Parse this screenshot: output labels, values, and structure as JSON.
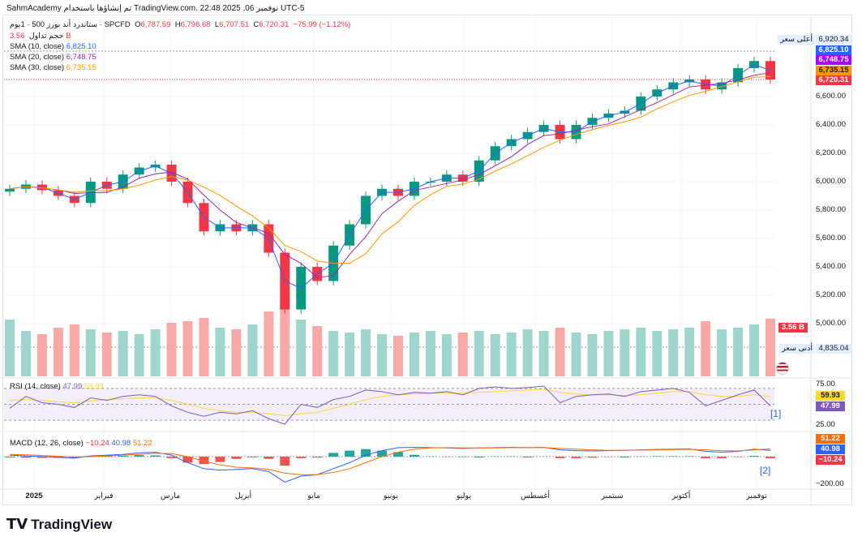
{
  "header": {
    "caption": "SahmAcademy تم إنشاؤها باستخدام TradingView.com. 22:48 2025 ,06 نوفمبر UTC-5"
  },
  "legend": {
    "symbol": "ستاندرد أند بورز 500 · 1يوم · SPCFD",
    "o_label": "O",
    "open": "6,787.59",
    "h_label": "H",
    "high": "6,796.68",
    "l_label": "L",
    "low": "6,707.51",
    "c_label": "C",
    "close": "6,720.31",
    "change": "−75.99 (−1.12%)",
    "volume_label": "حجم تداول",
    "volume": "3.56 B",
    "sma10_label": "SMA (10, close)",
    "sma10": "6,825.10",
    "sma20_label": "SMA (20, close)",
    "sma20": "6,748.75",
    "sma30_label": "SMA (30, close)",
    "sma30": "6,735.15"
  },
  "price_axis": {
    "ticks": [
      "6,600.00",
      "6,400.00",
      "6,200.00",
      "6,000.00",
      "5,800.00",
      "5,600.00",
      "5,400.00",
      "5,200.00",
      "5,000.00"
    ],
    "high_label": "أعلى سعر",
    "high_value": "6,920.34",
    "low_label": "أدنى سعر",
    "low_value": "4,835.04",
    "volume_badge": "3.56 B"
  },
  "rsi": {
    "label": "RSI (14, close)",
    "value": "47.99",
    "ma": "59.93",
    "ticks": [
      "75.00",
      "25.00"
    ],
    "note": "[1]"
  },
  "macd": {
    "label": "MACD (12, 26, close)",
    "hist": "−10.24",
    "macd": "40.98",
    "signal": "51.22",
    "tick": "−200.00",
    "note": "[2]"
  },
  "x_axis": [
    "2025",
    "فبراير",
    "مارس",
    "أبريل",
    "مايو",
    "يونيو",
    "يوليو",
    "أغسطس",
    "سبتمبر",
    "أكتوبر",
    "نوفمبر"
  ],
  "brand": "TradingView",
  "colors": {
    "up": "#089981",
    "down": "#f23645",
    "sma10": "#2962ff",
    "sma20": "#9c27b0",
    "sma30": "#ff9800",
    "rsi": "#7e57c2",
    "rsima": "#fdd835"
  },
  "chart_data": {
    "type": "candlestick",
    "title": "S&P 500 · 1D · SPCFD",
    "ylim": [
      4835,
      6920
    ],
    "closes": [
      5950,
      5980,
      5940,
      5900,
      5850,
      6000,
      5950,
      6050,
      6100,
      6120,
      6000,
      5850,
      5650,
      5700,
      5650,
      5700,
      5500,
      5100,
      5400,
      5300,
      5550,
      5700,
      5900,
      5950,
      5900,
      6000,
      6000,
      6050,
      6000,
      6150,
      6250,
      6300,
      6350,
      6400,
      6300,
      6400,
      6450,
      6480,
      6500,
      6600,
      6650,
      6700,
      6720,
      6650,
      6700,
      6800,
      6850,
      6720
    ],
    "volume_billions": [
      3.5,
      2.8,
      2.6,
      3.0,
      3.2,
      2.9,
      2.7,
      2.8,
      2.6,
      2.9,
      3.3,
      3.4,
      3.6,
      3.0,
      2.9,
      3.2,
      4.0,
      4.5,
      3.5,
      3.1,
      2.8,
      2.7,
      2.9,
      2.6,
      2.5,
      2.7,
      2.8,
      2.6,
      2.7,
      2.8,
      2.6,
      2.7,
      2.9,
      2.8,
      3.0,
      2.7,
      2.6,
      2.8,
      2.9,
      3.0,
      2.8,
      2.9,
      3.0,
      3.4,
      2.9,
      3.0,
      3.2,
      3.56
    ],
    "rsi": [
      45,
      60,
      52,
      50,
      46,
      58,
      55,
      60,
      62,
      60,
      48,
      40,
      35,
      40,
      38,
      42,
      32,
      25,
      50,
      46,
      56,
      60,
      68,
      66,
      62,
      65,
      64,
      66,
      62,
      70,
      72,
      70,
      71,
      73,
      52,
      60,
      62,
      63,
      60,
      66,
      68,
      70,
      65,
      48,
      55,
      62,
      68,
      47.99
    ],
    "rsi_ma": [
      55,
      56,
      55,
      53,
      52,
      54,
      56,
      57,
      58,
      58,
      55,
      50,
      45,
      42,
      40,
      40,
      38,
      36,
      38,
      40,
      45,
      50,
      56,
      60,
      62,
      63,
      64,
      64,
      64,
      65,
      66,
      67,
      68,
      69,
      65,
      63,
      62,
      62,
      61,
      62,
      64,
      66,
      66,
      62,
      60,
      60,
      62,
      59.93
    ],
    "macd": [
      10,
      5,
      0,
      -5,
      -10,
      5,
      10,
      15,
      25,
      30,
      10,
      -40,
      -80,
      -90,
      -85,
      -80,
      -100,
      -170,
      -130,
      -120,
      -80,
      -40,
      10,
      40,
      60,
      62,
      60,
      58,
      55,
      58,
      60,
      62,
      60,
      62,
      45,
      40,
      38,
      40,
      42,
      45,
      48,
      50,
      52,
      35,
      30,
      35,
      50,
      40.98
    ],
    "signal": [
      15,
      12,
      8,
      3,
      -2,
      0,
      5,
      10,
      15,
      22,
      20,
      0,
      -30,
      -55,
      -70,
      -75,
      -85,
      -110,
      -120,
      -120,
      -105,
      -80,
      -40,
      0,
      30,
      50,
      58,
      60,
      58,
      58,
      58,
      60,
      60,
      61,
      55,
      50,
      45,
      42,
      42,
      43,
      45,
      47,
      49,
      45,
      40,
      38,
      45,
      51.22
    ]
  }
}
